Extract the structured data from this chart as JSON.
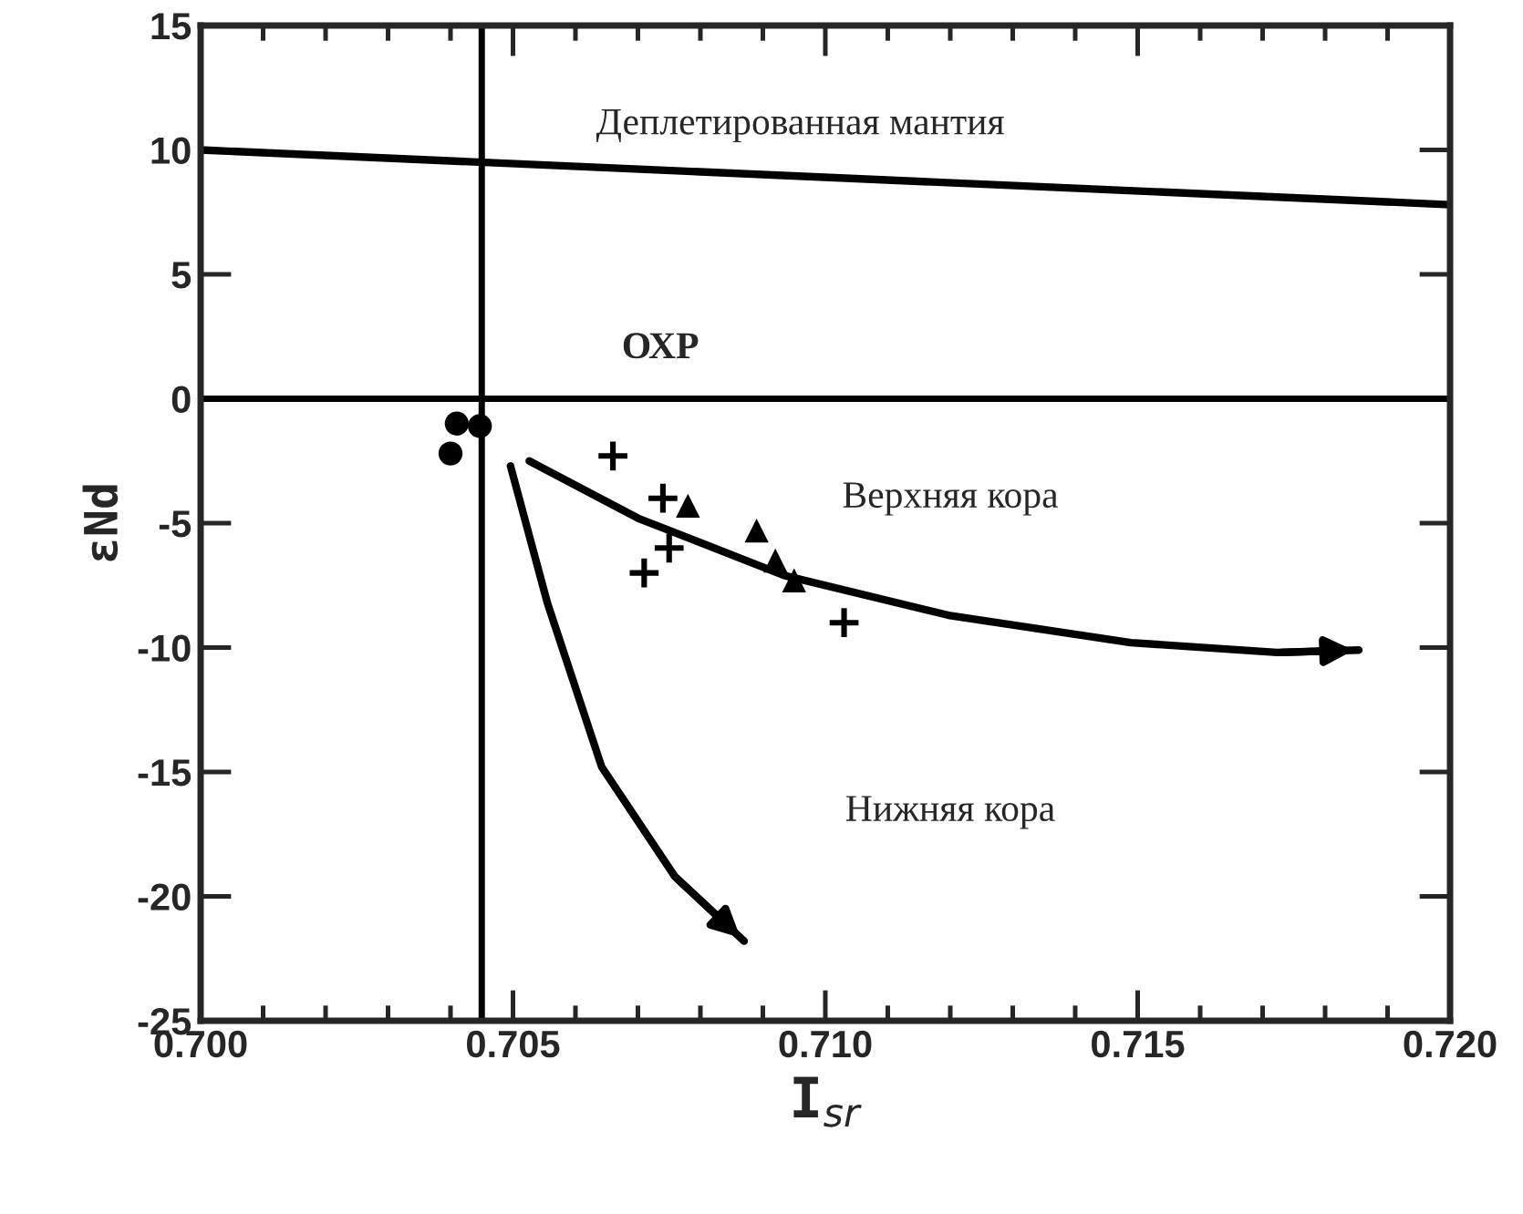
{
  "chart_data": {
    "type": "scatter",
    "xlabel": "I$_{sr}$",
    "ylabel": "εNd",
    "xlim": [
      0.7,
      0.72
    ],
    "xticks": [
      {
        "value": 0.7,
        "label": "0.700"
      },
      {
        "value": 0.705,
        "label": "0.705"
      },
      {
        "value": 0.71,
        "label": "0.710"
      },
      {
        "value": 0.715,
        "label": "0.715"
      },
      {
        "value": 0.72,
        "label": "0.720"
      }
    ],
    "ylim": [
      -25,
      15
    ],
    "yticks": [
      -25,
      -20,
      -15,
      -10,
      -5,
      0,
      5,
      10,
      15
    ],
    "grid": false,
    "series": [
      {
        "marker": "circle",
        "color": "#000000",
        "x": [
          0.7041,
          0.70447,
          0.704
        ],
        "values": [
          -1.0,
          -1.1,
          -2.2
        ]
      },
      {
        "marker": "cross",
        "color": "#000000",
        "x": [
          0.7066,
          0.7074,
          0.7075,
          0.7071,
          0.7103
        ],
        "values": [
          -2.3,
          -4.0,
          -6.0,
          -7.0,
          -9.0
        ]
      },
      {
        "marker": "triangle",
        "color": "#000000",
        "x": [
          0.7078,
          0.7089,
          0.7092,
          0.7095
        ],
        "values": [
          -4.3,
          -5.3,
          -6.5,
          -7.3
        ]
      },
      {
        "type": "line",
        "color": "#000000",
        "x": [
          0.7,
          0.72
        ],
        "values": [
          10.0,
          7.8
        ]
      },
      {
        "type": "line",
        "color": "#000000",
        "x": [
          0.70526,
          0.707,
          0.70934,
          0.71197,
          0.71489,
          0.71723,
          0.71854
        ],
        "values": [
          -2.5,
          -4.8,
          -7.1,
          -8.7,
          -9.8,
          -10.2,
          -10.1
        ]
      },
      {
        "type": "line",
        "color": "#000000",
        "x": [
          0.70496,
          0.70555,
          0.70642,
          0.70759,
          0.7087
        ],
        "values": [
          -2.7,
          -8.2,
          -14.8,
          -19.2,
          -21.8
        ]
      }
    ],
    "ref_lines": [
      {
        "axis": "y",
        "value": 0
      },
      {
        "axis": "x",
        "value": 0.7045
      }
    ],
    "annotations": [
      "Деплетированная мантия",
      "ОХР",
      "Верхняя кора",
      "Нижняя кора"
    ]
  }
}
